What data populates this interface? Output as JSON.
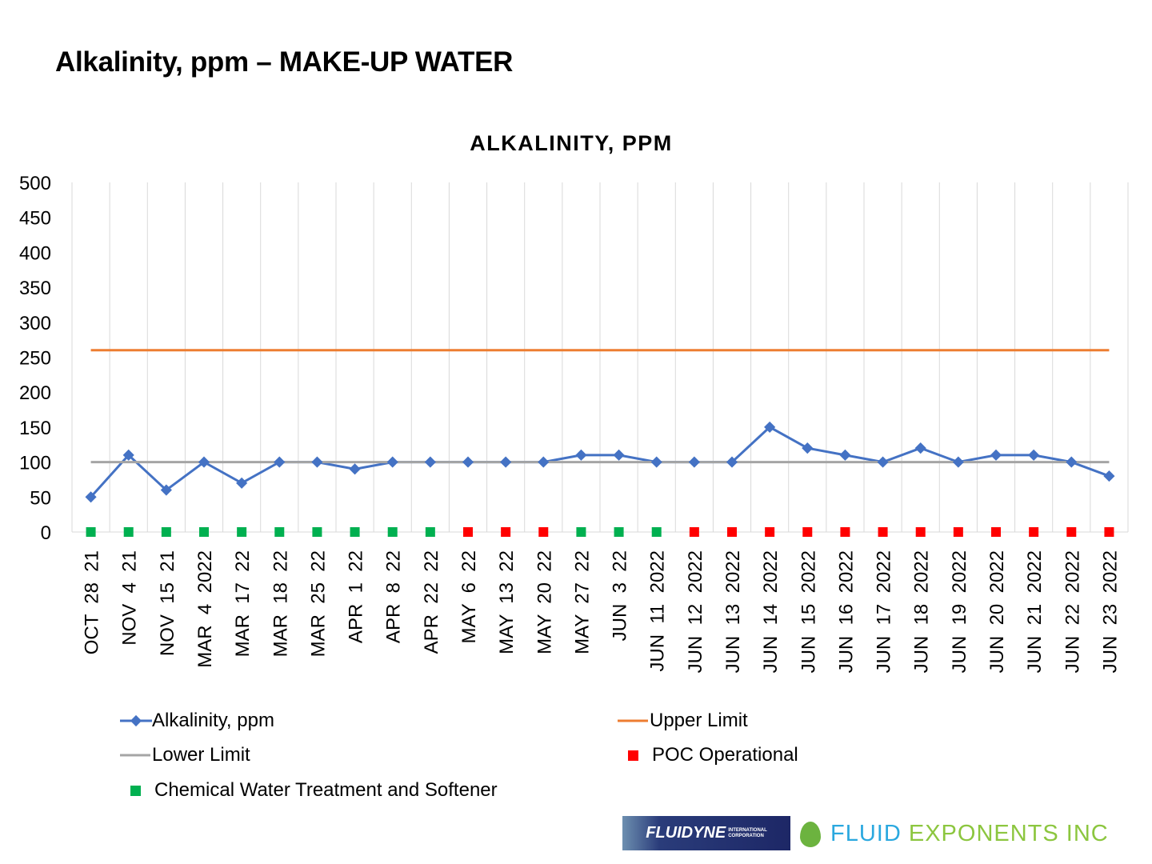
{
  "page_title": "Alkalinity, ppm – MAKE-UP WATER",
  "chart_data": {
    "type": "line",
    "title": "ALKALINITY,  PPM",
    "xlabel": "",
    "ylabel": "",
    "ylim": [
      0,
      500
    ],
    "yticks": [
      0,
      50,
      100,
      150,
      200,
      250,
      300,
      350,
      400,
      450,
      500
    ],
    "grid": "vertical",
    "legend_position": "bottom",
    "categories": [
      "OCT  28  21",
      "NOV  4  21",
      "NOV  15  21",
      "MAR  4  2022",
      "MAR  17  22",
      "MAR  18  22",
      "MAR  25  22",
      "APR  1  22",
      "APR  8  22",
      "APR  22  22",
      "MAY  6  22",
      "MAY  13  22",
      "MAY  20  22",
      "MAY  27  22",
      "JUN  3  22",
      "JUN  11  2022",
      "JUN  12  2022",
      "JUN  13  2022",
      "JUN  14  2022",
      "JUN  15  2022",
      "JUN  16  2022",
      "JUN  17  2022",
      "JUN  18  2022",
      "JUN  19  2022",
      "JUN  20  2022",
      "JUN  21  2022",
      "JUN  22  2022",
      "JUN  23  2022"
    ],
    "series": [
      {
        "name": "Alkalinity, ppm",
        "type": "line-marker",
        "color": "#4472c4",
        "values": [
          50,
          110,
          60,
          100,
          70,
          100,
          100,
          90,
          100,
          100,
          100,
          100,
          100,
          110,
          110,
          100,
          100,
          100,
          150,
          120,
          110,
          100,
          120,
          100,
          110,
          110,
          100,
          80
        ]
      },
      {
        "name": "Upper Limit",
        "type": "line",
        "color": "#ed7d31",
        "values": [
          260,
          260,
          260,
          260,
          260,
          260,
          260,
          260,
          260,
          260,
          260,
          260,
          260,
          260,
          260,
          260,
          260,
          260,
          260,
          260,
          260,
          260,
          260,
          260,
          260,
          260,
          260,
          260
        ]
      },
      {
        "name": "Lower Limit",
        "type": "line",
        "color": "#a5a5a5",
        "values": [
          100,
          100,
          100,
          100,
          100,
          100,
          100,
          100,
          100,
          100,
          100,
          100,
          100,
          100,
          100,
          100,
          100,
          100,
          100,
          100,
          100,
          100,
          100,
          100,
          100,
          100,
          100,
          100
        ]
      },
      {
        "name": "POC Operational",
        "type": "marker",
        "color": "#ff0000",
        "values": [
          null,
          null,
          null,
          null,
          null,
          null,
          null,
          null,
          null,
          null,
          0,
          0,
          0,
          null,
          null,
          null,
          0,
          0,
          0,
          0,
          0,
          0,
          0,
          0,
          0,
          0,
          0,
          0
        ]
      },
      {
        "name": "Chemical Water Treatment and Softener",
        "type": "marker",
        "color": "#00b050",
        "values": [
          0,
          0,
          0,
          0,
          0,
          0,
          0,
          0,
          0,
          0,
          null,
          null,
          null,
          0,
          0,
          0,
          null,
          null,
          null,
          null,
          null,
          null,
          null,
          null,
          null,
          null,
          null,
          null
        ]
      }
    ]
  },
  "logos": {
    "left": "FLUIDYNE INTERNATIONAL CORPORATION",
    "right_a": "FLUID",
    "right_b": " EXPONENTS INC"
  }
}
